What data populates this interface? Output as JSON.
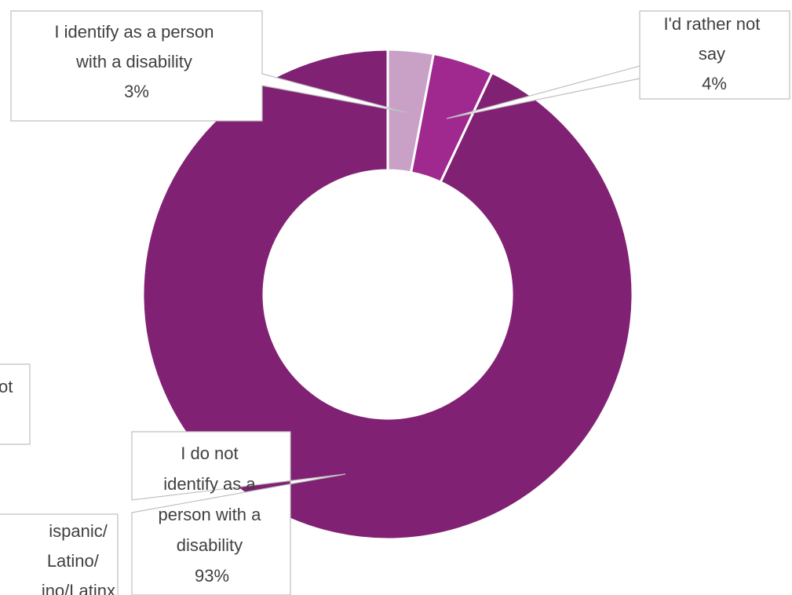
{
  "chart_data": {
    "type": "pie",
    "variant": "doughnut",
    "slices": [
      {
        "label": "I identify as a person with a disability",
        "value": 3,
        "value_label": "3%",
        "color": "#C9A0C6"
      },
      {
        "label": "I'd rather not say",
        "value": 4,
        "value_label": "4%",
        "color": "#A0298F"
      },
      {
        "label": "I do not identify as a person with a disability",
        "value": 93,
        "value_label": "93%",
        "color": "#812173"
      }
    ],
    "callouts": [
      {
        "lines": [
          "I identify as a person",
          "with a disability",
          "3%"
        ]
      },
      {
        "lines": [
          "I'd rather not",
          "say",
          "4%"
        ]
      },
      {
        "lines": [
          "I do not",
          "identify as a",
          "person with a",
          "disability",
          "93%"
        ]
      }
    ],
    "clipped_callouts": [
      {
        "lines": [
          "ot"
        ]
      },
      {
        "lines": [
          "ispanic/",
          "Latino/",
          "ino/Latinx"
        ]
      }
    ],
    "legend": "none"
  }
}
